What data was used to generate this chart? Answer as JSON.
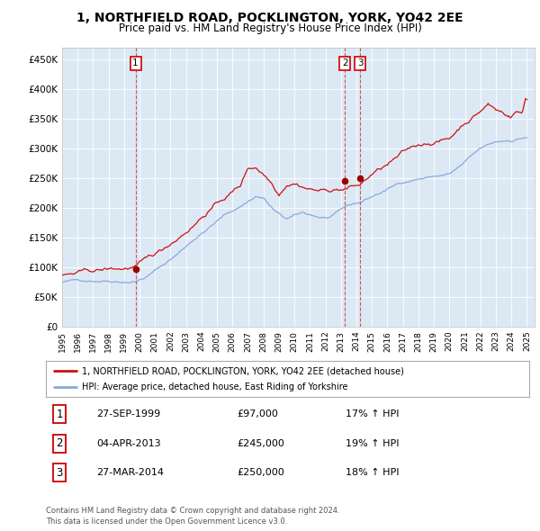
{
  "title": "1, NORTHFIELD ROAD, POCKLINGTON, YORK, YO42 2EE",
  "subtitle": "Price paid vs. HM Land Registry's House Price Index (HPI)",
  "bg_color": "#dce9f5",
  "red_line_label": "1, NORTHFIELD ROAD, POCKLINGTON, YORK, YO42 2EE (detached house)",
  "blue_line_label": "HPI: Average price, detached house, East Riding of Yorkshire",
  "sales": [
    {
      "num": 1,
      "date": "27-SEP-1999",
      "price": 97000,
      "hpi_pct": "17% ↑ HPI",
      "x": 1999.74
    },
    {
      "num": 2,
      "date": "04-APR-2013",
      "price": 245000,
      "hpi_pct": "19% ↑ HPI",
      "x": 2013.25
    },
    {
      "num": 3,
      "date": "27-MAR-2014",
      "price": 250000,
      "hpi_pct": "18% ↑ HPI",
      "x": 2014.23
    }
  ],
  "footer": "Contains HM Land Registry data © Crown copyright and database right 2024.\nThis data is licensed under the Open Government Licence v3.0.",
  "ylim": [
    0,
    470000
  ],
  "yticks": [
    0,
    50000,
    100000,
    150000,
    200000,
    250000,
    300000,
    350000,
    400000,
    450000
  ],
  "xmin": 1995.0,
  "xmax": 2025.5
}
